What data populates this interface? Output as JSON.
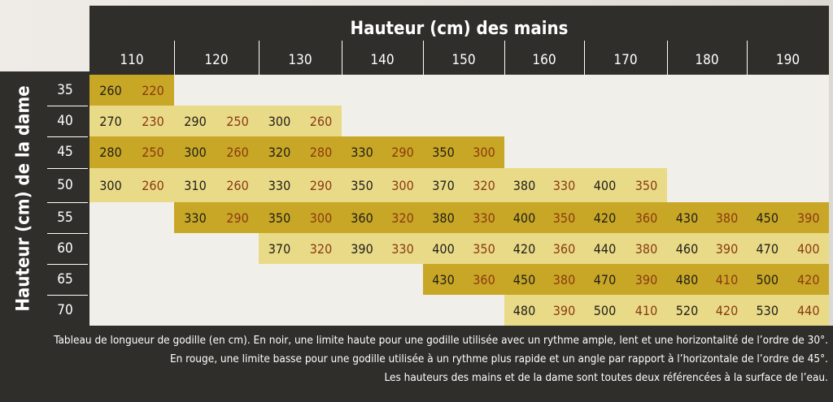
{
  "header": {
    "title": "Hauteur (cm) des mains"
  },
  "side_label": "Hauteur (cm) de la dame",
  "columns": [
    "110",
    "120",
    "130",
    "140",
    "150",
    "160",
    "170",
    "180",
    "190"
  ],
  "rows": [
    "35",
    "40",
    "45",
    "50",
    "55",
    "60",
    "65",
    "70"
  ],
  "colors": {
    "dark_cell": "#c9a726",
    "light_cell": "#e9da88",
    "high_limit_text": "#222018",
    "low_limit_text": "#8a3a12",
    "band": "#2f2e2b"
  },
  "cells": [
    {
      "row": 0,
      "col": 0,
      "high": "260",
      "low": "220"
    },
    {
      "row": 1,
      "col": 0,
      "high": "270",
      "low": "230"
    },
    {
      "row": 1,
      "col": 1,
      "high": "290",
      "low": "250"
    },
    {
      "row": 1,
      "col": 2,
      "high": "300",
      "low": "260"
    },
    {
      "row": 2,
      "col": 0,
      "high": "280",
      "low": "250"
    },
    {
      "row": 2,
      "col": 1,
      "high": "300",
      "low": "260"
    },
    {
      "row": 2,
      "col": 2,
      "high": "320",
      "low": "280"
    },
    {
      "row": 2,
      "col": 3,
      "high": "330",
      "low": "290"
    },
    {
      "row": 2,
      "col": 4,
      "high": "350",
      "low": "300"
    },
    {
      "row": 3,
      "col": 0,
      "high": "300",
      "low": "260"
    },
    {
      "row": 3,
      "col": 1,
      "high": "310",
      "low": "260"
    },
    {
      "row": 3,
      "col": 2,
      "high": "330",
      "low": "290"
    },
    {
      "row": 3,
      "col": 3,
      "high": "350",
      "low": "300"
    },
    {
      "row": 3,
      "col": 4,
      "high": "370",
      "low": "320"
    },
    {
      "row": 3,
      "col": 5,
      "high": "380",
      "low": "330"
    },
    {
      "row": 3,
      "col": 6,
      "high": "400",
      "low": "350"
    },
    {
      "row": 4,
      "col": 1,
      "high": "330",
      "low": "290"
    },
    {
      "row": 4,
      "col": 2,
      "high": "350",
      "low": "300"
    },
    {
      "row": 4,
      "col": 3,
      "high": "360",
      "low": "320"
    },
    {
      "row": 4,
      "col": 4,
      "high": "380",
      "low": "330"
    },
    {
      "row": 4,
      "col": 5,
      "high": "400",
      "low": "350"
    },
    {
      "row": 4,
      "col": 6,
      "high": "420",
      "low": "360"
    },
    {
      "row": 4,
      "col": 7,
      "high": "430",
      "low": "380"
    },
    {
      "row": 4,
      "col": 8,
      "high": "450",
      "low": "390"
    },
    {
      "row": 5,
      "col": 2,
      "high": "370",
      "low": "320"
    },
    {
      "row": 5,
      "col": 3,
      "high": "390",
      "low": "330"
    },
    {
      "row": 5,
      "col": 4,
      "high": "400",
      "low": "350"
    },
    {
      "row": 5,
      "col": 5,
      "high": "420",
      "low": "360"
    },
    {
      "row": 5,
      "col": 6,
      "high": "440",
      "low": "380"
    },
    {
      "row": 5,
      "col": 7,
      "high": "460",
      "low": "390"
    },
    {
      "row": 5,
      "col": 8,
      "high": "470",
      "low": "400"
    },
    {
      "row": 6,
      "col": 4,
      "high": "430",
      "low": "360"
    },
    {
      "row": 6,
      "col": 5,
      "high": "450",
      "low": "380"
    },
    {
      "row": 6,
      "col": 6,
      "high": "470",
      "low": "390"
    },
    {
      "row": 6,
      "col": 7,
      "high": "480",
      "low": "410"
    },
    {
      "row": 6,
      "col": 8,
      "high": "500",
      "low": "420"
    },
    {
      "row": 7,
      "col": 5,
      "high": "480",
      "low": "390"
    },
    {
      "row": 7,
      "col": 6,
      "high": "500",
      "low": "410"
    },
    {
      "row": 7,
      "col": 7,
      "high": "520",
      "low": "420"
    },
    {
      "row": 7,
      "col": 8,
      "high": "530",
      "low": "440"
    }
  ],
  "caption": [
    "Tableau de longueur de godille (en cm). En noir, une limite haute pour une godille utilisée avec un rythme ample, lent et une horizontalité de l’ordre de 30°.",
    "En rouge, une limite basse pour une godille utilisée à un rythme plus rapide et un angle par rapport à l’horizontale de l’ordre de 45°.",
    "Les hauteurs des mains et de la dame sont toutes deux référencées à la surface de l’eau."
  ]
}
